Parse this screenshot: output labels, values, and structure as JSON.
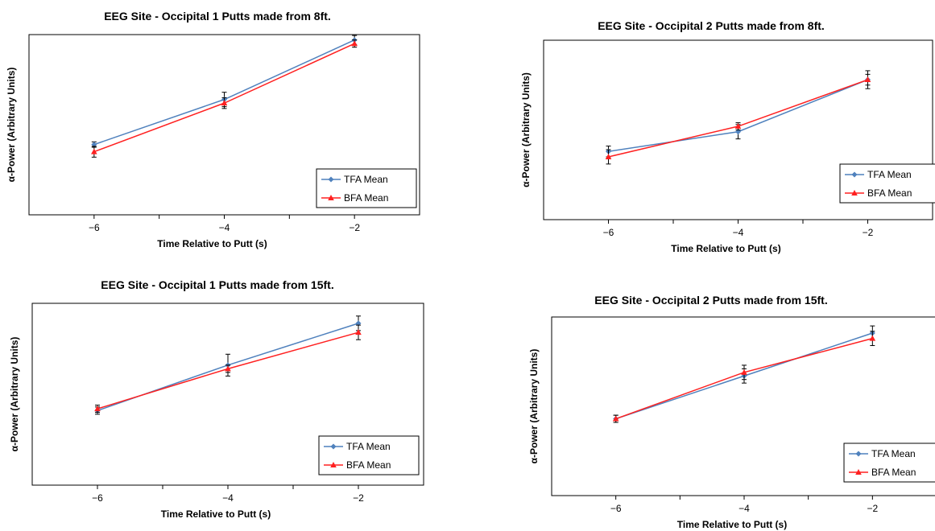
{
  "colors": {
    "tfa": "#4f81bd",
    "bfa": "#ff2020",
    "errbar": "#000000",
    "frame": "#000000"
  },
  "legend": {
    "placement": "bottom-right"
  },
  "chart_data": [
    {
      "type": "line",
      "title": "EEG Site - Occipital 1 Putts made from 8ft.",
      "xlabel": "Time Relative to Putt (s)",
      "ylabel": "α-Power (Arbitrary  Units)",
      "x": [
        -6,
        -4,
        -2
      ],
      "xlim": [
        -7,
        -1
      ],
      "xticks": [
        -6,
        -4,
        -2
      ],
      "ylim": [
        0,
        100
      ],
      "series": [
        {
          "name": "TFA Mean",
          "values": [
            39,
            64,
            97
          ],
          "errors": [
            1.5,
            4,
            2.5
          ],
          "marker": "diamond"
        },
        {
          "name": "BFA Mean",
          "values": [
            35,
            62,
            95
          ],
          "errors": [
            3,
            3,
            2
          ],
          "marker": "triangle"
        }
      ]
    },
    {
      "type": "line",
      "title": "EEG Site - Occipital 2 Putts made from 8ft.",
      "xlabel": "Time Relative to Putt (s)",
      "ylabel": "α-Power (Arbitrary  Units)",
      "x": [
        -6,
        -4,
        -2
      ],
      "xlim": [
        -7,
        -1
      ],
      "xticks": [
        -6,
        -4,
        -2
      ],
      "ylim": [
        0,
        100
      ],
      "series": [
        {
          "name": "TFA Mean",
          "values": [
            38,
            49,
            78
          ],
          "errors": [
            3,
            4,
            5
          ],
          "marker": "diamond"
        },
        {
          "name": "BFA Mean",
          "values": [
            35,
            52,
            78
          ],
          "errors": [
            4,
            2,
            3
          ],
          "marker": "triangle"
        }
      ]
    },
    {
      "type": "line",
      "title": "EEG Site - Occipital 1 Putts made from 15ft.",
      "xlabel": "Time Relative to Putt (s)",
      "ylabel": "α-Power (Arbitrary  Units)",
      "x": [
        -6,
        -4,
        -2
      ],
      "xlim": [
        -7,
        -1
      ],
      "xticks": [
        -6,
        -4,
        -2
      ],
      "ylim": [
        0,
        100
      ],
      "series": [
        {
          "name": "TFA Mean",
          "values": [
            41,
            66,
            89
          ],
          "errors": [
            2,
            6,
            4
          ],
          "marker": "diamond"
        },
        {
          "name": "BFA Mean",
          "values": [
            42,
            64,
            84
          ],
          "errors": [
            2,
            2,
            4
          ],
          "marker": "triangle"
        }
      ]
    },
    {
      "type": "line",
      "title": "EEG Site - Occipital 2 Putts made from 15ft.",
      "xlabel": "Time Relative to Putt (s)",
      "ylabel": "α-Power (Arbitrary  Units)",
      "x": [
        -6,
        -4,
        -2
      ],
      "xlim": [
        -7,
        -1
      ],
      "xticks": [
        -6,
        -4,
        -2
      ],
      "ylim": [
        0,
        100
      ],
      "series": [
        {
          "name": "TFA Mean",
          "values": [
            43,
            67,
            91
          ],
          "errors": [
            2,
            4,
            4
          ],
          "marker": "diamond"
        },
        {
          "name": "BFA Mean",
          "values": [
            43,
            69,
            88
          ],
          "errors": [
            2,
            4,
            4
          ],
          "marker": "triangle"
        }
      ]
    }
  ]
}
